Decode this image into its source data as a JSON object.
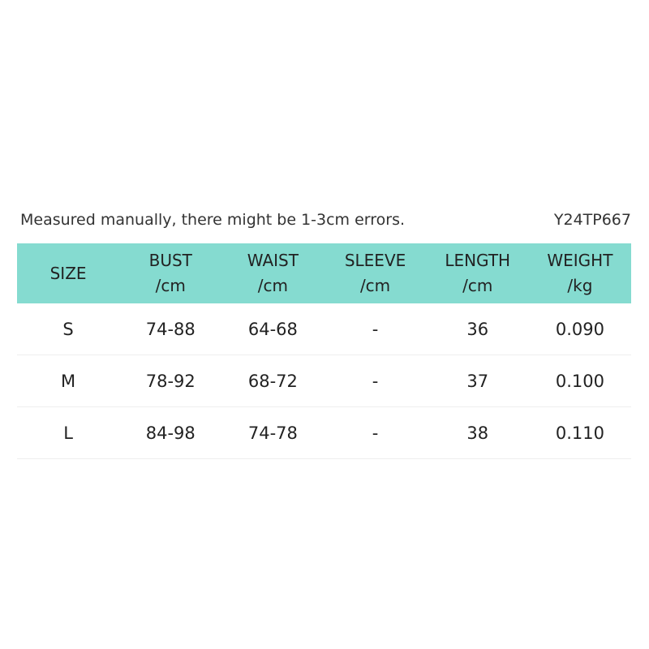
{
  "note": "Measured manually, there might be 1-3cm errors.",
  "code": "Y24TP667",
  "table": {
    "header": [
      [
        "SIZE"
      ],
      [
        "BUST",
        "/cm"
      ],
      [
        "WAIST",
        "/cm"
      ],
      [
        "SLEEVE",
        "/cm"
      ],
      [
        "LENGTH",
        "/cm"
      ],
      [
        "WEIGHT",
        "/kg"
      ]
    ],
    "rows": [
      [
        "S",
        "74-88",
        "64-68",
        "-",
        "36",
        "0.090"
      ],
      [
        "M",
        "78-92",
        "68-72",
        "-",
        "37",
        "0.100"
      ],
      [
        "L",
        "84-98",
        "74-78",
        "-",
        "38",
        "0.110"
      ]
    ]
  }
}
